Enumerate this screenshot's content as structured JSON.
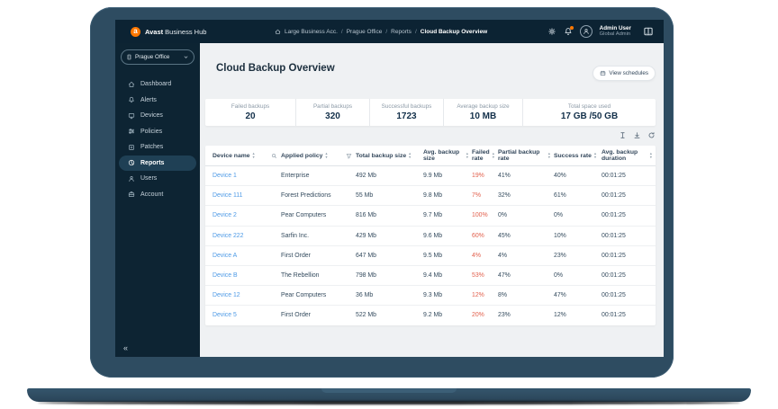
{
  "topbar": {
    "brand_bold": "Avast",
    "brand_rest": "Business Hub",
    "breadcrumb": [
      "Large Business Acc.",
      "Prague Office",
      "Reports",
      "Cloud Backup Overview"
    ],
    "user_name": "Admin User",
    "user_role": "Global Admin"
  },
  "sidebar": {
    "org_selector": "Prague Office",
    "collapse_icon": "«",
    "items": [
      {
        "label": "Dashboard",
        "icon": "home",
        "active": false
      },
      {
        "label": "Alerts",
        "icon": "bell",
        "active": false
      },
      {
        "label": "Devices",
        "icon": "monitor",
        "active": false
      },
      {
        "label": "Policies",
        "icon": "sliders",
        "active": false
      },
      {
        "label": "Patches",
        "icon": "patch",
        "active": false
      },
      {
        "label": "Reports",
        "icon": "chart",
        "active": true
      },
      {
        "label": "Users",
        "icon": "user",
        "active": false
      },
      {
        "label": "Account",
        "icon": "briefcase",
        "active": false
      }
    ]
  },
  "page": {
    "title": "Cloud Backup Overview",
    "view_schedules_label": "View schedules"
  },
  "stats": [
    {
      "label": "Failed backups",
      "value": "20"
    },
    {
      "label": "Partial backups",
      "value": "320"
    },
    {
      "label": "Successful backups",
      "value": "1723"
    },
    {
      "label": "Average backup size",
      "value": "10 MB"
    },
    {
      "label": "Total space used",
      "value": "17 GB /50 GB"
    }
  ],
  "toolbar_icons": [
    "columns",
    "download",
    "refresh"
  ],
  "table": {
    "columns": [
      {
        "label": "Device name",
        "sortable": true,
        "extra_icon": "search"
      },
      {
        "label": "Applied policy",
        "sortable": true,
        "extra_icon": "funnel"
      },
      {
        "label": "Total backup size",
        "sortable": true,
        "extra_icon": null
      },
      {
        "label": "Avg. backup size",
        "sortable": true,
        "extra_icon": null
      },
      {
        "label": "Failed rate",
        "sortable": true,
        "extra_icon": null
      },
      {
        "label": "Partial backup rate",
        "sortable": true,
        "extra_icon": null
      },
      {
        "label": "Success rate",
        "sortable": true,
        "extra_icon": null
      },
      {
        "label": "Avg. backup duration",
        "sortable": true,
        "extra_icon": null
      }
    ],
    "rows": [
      {
        "device": "Device 1",
        "policy": "Enterprise",
        "total": "492 Mb",
        "avg": "9.9 Mb",
        "failed": "19%",
        "partial": "41%",
        "success": "40%",
        "duration": "00:01:25"
      },
      {
        "device": "Device 111",
        "policy": "Forest Predictions",
        "total": "55 Mb",
        "avg": "9.8 Mb",
        "failed": "7%",
        "partial": "32%",
        "success": "61%",
        "duration": "00:01:25"
      },
      {
        "device": "Device 2",
        "policy": "Pear Computers",
        "total": "816 Mb",
        "avg": "9.7 Mb",
        "failed": "100%",
        "partial": "0%",
        "success": "0%",
        "duration": "00:01:25"
      },
      {
        "device": "Device 222",
        "policy": "Sarfin Inc.",
        "total": "429 Mb",
        "avg": "9.6 Mb",
        "failed": "60%",
        "partial": "45%",
        "success": "10%",
        "duration": "00:01:25"
      },
      {
        "device": "Device A",
        "policy": "First Order",
        "total": "647 Mb",
        "avg": "9.5 Mb",
        "failed": "4%",
        "partial": "4%",
        "success": "23%",
        "duration": "00:01:25"
      },
      {
        "device": "Device B",
        "policy": "The Rebellion",
        "total": "798 Mb",
        "avg": "9.4 Mb",
        "failed": "53%",
        "partial": "47%",
        "success": "0%",
        "duration": "00:01:25"
      },
      {
        "device": "Device 12",
        "policy": "Pear Computers",
        "total": "36 Mb",
        "avg": "9.3 Mb",
        "failed": "12%",
        "partial": "8%",
        "success": "47%",
        "duration": "00:01:25"
      },
      {
        "device": "Device 5",
        "policy": "First Order",
        "total": "522 Mb",
        "avg": "9.2 Mb",
        "failed": "20%",
        "partial": "23%",
        "success": "12%",
        "duration": "00:01:25"
      }
    ]
  },
  "colors": {
    "brand_orange": "#FF7800",
    "link_blue": "#4D9AE6",
    "failed_red": "#E2604D",
    "laptop_frame": "#2E4C61",
    "topbar_bg": "#0C2333",
    "sidebar_bg": "#0D2433",
    "main_bg": "#EFF1F3"
  }
}
